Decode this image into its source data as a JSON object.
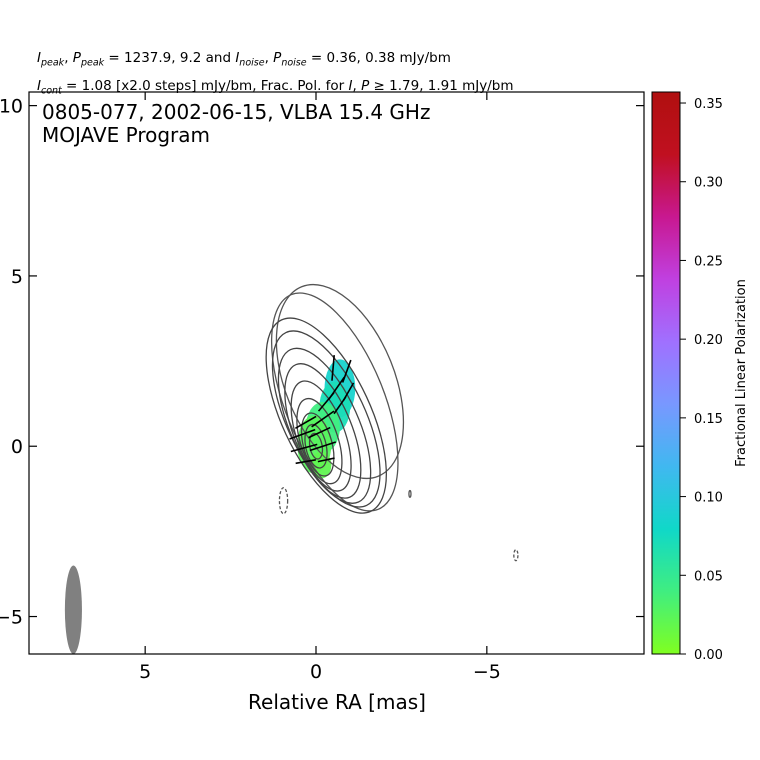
{
  "header": {
    "line1_parts": {
      "ipeak": "I",
      "ipeak_sub": "peak",
      "ppeak": "P",
      "ppeak_sub": "peak",
      "mid1": " = 1237.9, 9.2 and ",
      "inoise": "I",
      "inoise_sub": "noise",
      "pnoise": "P",
      "pnoise_sub": "noise",
      "end1": " = 0.36, 0.38 mJy/bm"
    },
    "line2_parts": {
      "icont": "I",
      "icont_sub": "cont",
      "mid2": " = 1.08 [x2.0 steps] mJy/bm, Frac. Pol. for ",
      "i": "I",
      "p": "P",
      "end2": " ≥  1.79, 1.91 mJy/bm"
    }
  },
  "plot_title": {
    "line1": "0805-077, 2002-06-15, VLBA 15.4 GHz",
    "line2": "MOJAVE Program"
  },
  "xlabel": "Relative RA [mas]",
  "colorbar": {
    "label": "Fractional Linear Polarization",
    "ticks": [
      "0.00",
      "0.05",
      "0.10",
      "0.15",
      "0.20",
      "0.25",
      "0.30",
      "0.35"
    ],
    "range": [
      0.0,
      0.357
    ],
    "colors": [
      "#80ff20",
      "#40ee80",
      "#10d8c8",
      "#40b8f0",
      "#7898ff",
      "#a070ff",
      "#c040e0",
      "#c81890",
      "#c01020",
      "#b00f0f"
    ]
  },
  "chart_data": {
    "type": "contour",
    "title": "0805-077, 2002-06-15, VLBA 15.4 GHz",
    "xlabel": "Relative RA [mas]",
    "ylabel": "",
    "xlim": [
      8.4,
      -9.6
    ],
    "ylim": [
      -6.1,
      10.4
    ],
    "x_ticks": [
      5,
      0,
      -5
    ],
    "x_tick_labels": [
      "5",
      "0",
      "−5"
    ],
    "y_ticks": [
      10,
      5,
      0,
      -5
    ],
    "y_tick_labels": [
      "10",
      "5",
      "0",
      "−5"
    ],
    "x_minor_ticks": [
      10,
      5,
      0,
      -5
    ],
    "core": {
      "x": 0,
      "y": 0
    },
    "contour_levels": [
      {
        "cx": -0.3,
        "cy": 0.9,
        "rx": 1.3,
        "ry": 3.1,
        "angle": -25
      },
      {
        "cx": -0.3,
        "cy": 0.8,
        "rx": 1.15,
        "ry": 2.8,
        "angle": -25
      },
      {
        "cx": -0.25,
        "cy": 0.6,
        "rx": 1.0,
        "ry": 2.45,
        "angle": -24
      },
      {
        "cx": -0.2,
        "cy": 0.45,
        "rx": 0.85,
        "ry": 2.1,
        "angle": -22
      },
      {
        "cx": -0.15,
        "cy": 0.3,
        "rx": 0.7,
        "ry": 1.7,
        "angle": -20
      },
      {
        "cx": -0.1,
        "cy": 0.15,
        "rx": 0.55,
        "ry": 1.3,
        "angle": -18
      },
      {
        "cx": -0.05,
        "cy": 0.05,
        "rx": 0.42,
        "ry": 0.95,
        "angle": -15
      },
      {
        "cx": 0.0,
        "cy": 0.0,
        "rx": 0.3,
        "ry": 0.65,
        "angle": -12
      },
      {
        "cx": 0.0,
        "cy": 0.0,
        "rx": 0.18,
        "ry": 0.38,
        "angle": -10
      }
    ],
    "outer_contours": [
      {
        "cx": -0.7,
        "cy": 1.9,
        "rx": 1.6,
        "ry": 3.0,
        "angle": -22
      },
      {
        "cx": -0.55,
        "cy": 1.3,
        "rx": 1.45,
        "ry": 3.4,
        "angle": -22
      }
    ],
    "negative_contours": [
      {
        "cx": 0.95,
        "cy": -1.6,
        "rx": 0.12,
        "ry": 0.38
      },
      {
        "cx": -5.85,
        "cy": -3.2,
        "rx": 0.06,
        "ry": 0.16
      }
    ],
    "small_contours": [
      {
        "cx": -2.75,
        "cy": -1.4,
        "rx": 0.03,
        "ry": 0.1
      }
    ],
    "polarization_patches": [
      {
        "cx": -0.7,
        "cy": 1.7,
        "rx": 0.45,
        "ry": 0.85,
        "fpol": 0.085
      },
      {
        "cx": -0.55,
        "cy": 1.15,
        "rx": 0.45,
        "ry": 0.75,
        "fpol": 0.07
      },
      {
        "cx": -0.2,
        "cy": 0.55,
        "rx": 0.5,
        "ry": 0.75,
        "fpol": 0.04
      },
      {
        "cx": 0.05,
        "cy": 0.05,
        "rx": 0.5,
        "ry": 0.85,
        "fpol": 0.025
      },
      {
        "cx": -0.15,
        "cy": -0.55,
        "rx": 0.3,
        "ry": 0.4,
        "fpol": 0.02
      }
    ],
    "evpa_vectors": [
      {
        "x": -0.5,
        "y": 2.3,
        "len": 0.75,
        "angle": 85
      },
      {
        "x": -0.9,
        "y": 2.2,
        "len": 0.7,
        "angle": 70
      },
      {
        "x": -0.6,
        "y": 1.7,
        "len": 0.8,
        "angle": 55
      },
      {
        "x": -0.95,
        "y": 1.6,
        "len": 0.6,
        "angle": 60
      },
      {
        "x": -0.3,
        "y": 1.3,
        "len": 0.7,
        "angle": 50
      },
      {
        "x": -0.7,
        "y": 1.2,
        "len": 0.6,
        "angle": 55
      },
      {
        "x": -0.2,
        "y": 0.8,
        "len": 0.8,
        "angle": 35
      },
      {
        "x": 0.3,
        "y": 0.7,
        "len": 0.7,
        "angle": 30
      },
      {
        "x": 0.4,
        "y": 0.35,
        "len": 0.8,
        "angle": 20
      },
      {
        "x": -0.1,
        "y": 0.4,
        "len": 0.7,
        "angle": 25
      },
      {
        "x": 0.35,
        "y": -0.05,
        "len": 0.8,
        "angle": 15
      },
      {
        "x": -0.2,
        "y": 0.0,
        "len": 0.8,
        "angle": 18
      },
      {
        "x": 0.3,
        "y": -0.45,
        "len": 0.6,
        "angle": 10
      },
      {
        "x": -0.3,
        "y": -0.4,
        "len": 0.5,
        "angle": 12
      }
    ],
    "beam": {
      "x": 7.1,
      "y": -4.8,
      "major": 1.3,
      "minor": 0.5,
      "angle": 0
    }
  }
}
